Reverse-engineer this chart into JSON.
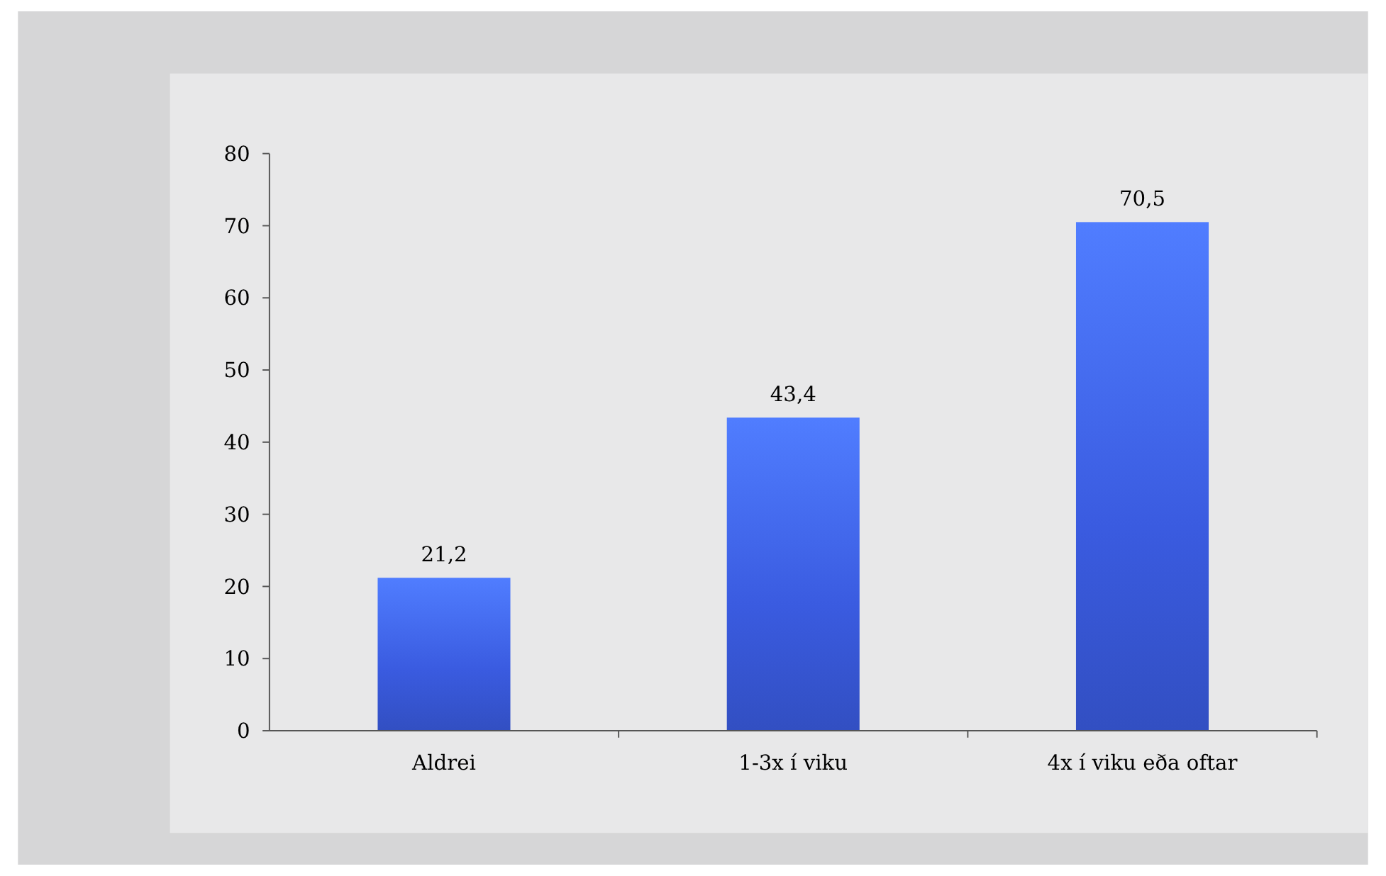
{
  "chart_data": {
    "type": "bar",
    "categories": [
      "Aldrei",
      "1-3x í viku",
      "4x í viku eða oftar"
    ],
    "values": [
      21.2,
      43.4,
      70.5
    ],
    "color": "#3a5be0",
    "ylim": [
      0,
      80
    ],
    "yticks": [
      0,
      10,
      20,
      30,
      40,
      50,
      60,
      70,
      80
    ],
    "grid": false,
    "value_labels": [
      "21,2",
      "43,4",
      "70,5"
    ]
  }
}
